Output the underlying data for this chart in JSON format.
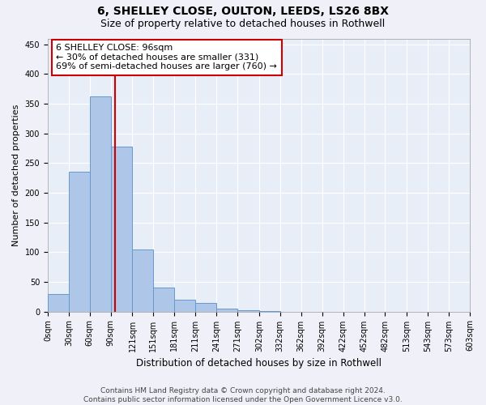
{
  "title1": "6, SHELLEY CLOSE, OULTON, LEEDS, LS26 8BX",
  "title2": "Size of property relative to detached houses in Rothwell",
  "xlabel": "Distribution of detached houses by size in Rothwell",
  "ylabel": "Number of detached properties",
  "bar_values": [
    30,
    235,
    363,
    278,
    105,
    40,
    20,
    15,
    5,
    2,
    1,
    0,
    0,
    0,
    0,
    0,
    0,
    0,
    0,
    0
  ],
  "bin_edges": [
    0,
    30,
    60,
    90,
    121,
    151,
    181,
    211,
    241,
    271,
    302,
    332,
    362,
    392,
    422,
    452,
    482,
    513,
    543,
    573,
    603
  ],
  "bar_color": "#aec6e8",
  "bar_edge_color": "#6699cc",
  "background_color": "#e8eef8",
  "grid_color": "#ffffff",
  "property_size": 96,
  "vline_color": "#cc0000",
  "annotation_line1": "6 SHELLEY CLOSE: 96sqm",
  "annotation_line2": "← 30% of detached houses are smaller (331)",
  "annotation_line3": "69% of semi-detached houses are larger (760) →",
  "annotation_box_color": "#ffffff",
  "annotation_box_edge": "#cc0000",
  "ylim": [
    0,
    460
  ],
  "yticks": [
    0,
    50,
    100,
    150,
    200,
    250,
    300,
    350,
    400,
    450
  ],
  "footer_line1": "Contains HM Land Registry data © Crown copyright and database right 2024.",
  "footer_line2": "Contains public sector information licensed under the Open Government Licence v3.0.",
  "title1_fontsize": 10,
  "title2_fontsize": 9,
  "xlabel_fontsize": 8.5,
  "ylabel_fontsize": 8,
  "tick_fontsize": 7,
  "annotation_fontsize": 8,
  "footer_fontsize": 6.5
}
